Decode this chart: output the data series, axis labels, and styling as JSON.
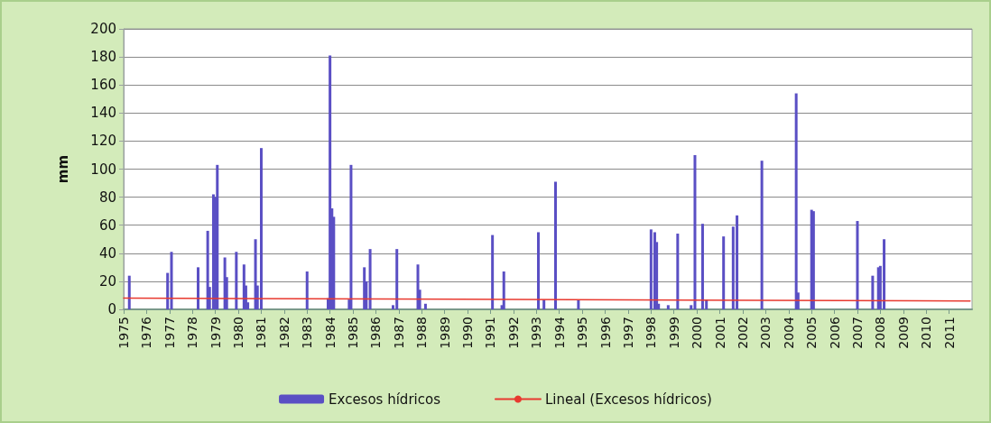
{
  "chart_data": {
    "type": "bar",
    "ylabel": "mm",
    "xlim": [
      "1975-01",
      "2012-01"
    ],
    "xticks": [
      "1975",
      "1976",
      "1977",
      "1978",
      "1979",
      "1980",
      "1981",
      "1982",
      "1983",
      "1984",
      "1985",
      "1986",
      "1987",
      "1988",
      "1989",
      "1990",
      "1991",
      "1992",
      "1993",
      "1994",
      "1995",
      "1996",
      "1997",
      "1998",
      "1999",
      "2000",
      "2001",
      "2002",
      "2003",
      "2004",
      "2005",
      "2006",
      "2007",
      "2008",
      "2009",
      "2010",
      "2011"
    ],
    "ylim": [
      0,
      200
    ],
    "yticks": [
      0,
      20,
      40,
      60,
      80,
      100,
      120,
      140,
      160,
      180,
      200
    ],
    "grid": "y",
    "legend": "bottom",
    "marker": "none",
    "series": [
      {
        "name": "Excesos hídricos",
        "color": "#5a4fc4",
        "x": [
          "1975-04",
          "1976-12",
          "1977-02",
          "1978-04",
          "1978-09",
          "1978-10",
          "1978-12",
          "1979-01",
          "1979-02",
          "1979-06",
          "1979-07",
          "1979-12",
          "1980-04",
          "1980-05",
          "1980-06",
          "1980-10",
          "1980-11",
          "1981-01",
          "1983-01",
          "1983-12",
          "1984-01",
          "1984-02",
          "1984-03",
          "1984-11",
          "1984-12",
          "1985-07",
          "1985-08",
          "1985-10",
          "1986-10",
          "1986-12",
          "1987-11",
          "1987-12",
          "1988-03",
          "1991-02",
          "1991-07",
          "1991-08",
          "1993-02",
          "1993-05",
          "1993-11",
          "1994-11",
          "1998-01",
          "1998-03",
          "1998-04",
          "1998-05",
          "1998-10",
          "1999-03",
          "1999-10",
          "1999-12",
          "2000-04",
          "2000-06",
          "2001-03",
          "2001-08",
          "2001-10",
          "2002-11",
          "2004-05",
          "2004-06",
          "2005-01",
          "2005-02",
          "2007-01",
          "2007-09",
          "2007-12",
          "2008-01",
          "2008-03"
        ],
        "values": [
          24,
          26,
          41,
          30,
          56,
          16,
          82,
          80,
          103,
          37,
          23,
          41,
          32,
          17,
          5,
          50,
          17,
          115,
          27,
          8,
          181,
          72,
          66,
          7,
          103,
          30,
          20,
          43,
          3,
          43,
          32,
          14,
          4,
          53,
          3,
          27,
          55,
          7,
          91,
          7,
          57,
          55,
          48,
          4,
          3,
          54,
          3,
          110,
          61,
          7,
          52,
          59,
          67,
          106,
          154,
          12,
          71,
          70,
          63,
          24,
          30,
          31,
          50
        ]
      },
      {
        "type": "line",
        "name": "Lineal (Excesos hídricos)",
        "color": "#e8392f",
        "x": [
          "1975-01",
          "2011-12"
        ],
        "values": [
          8,
          6
        ]
      }
    ]
  }
}
